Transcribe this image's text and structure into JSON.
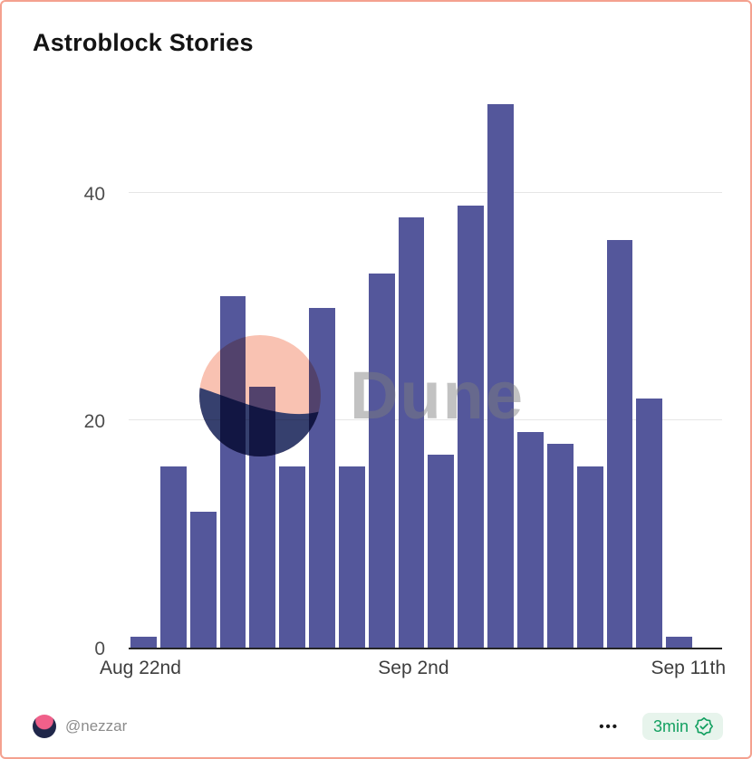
{
  "card": {
    "title": "Astroblock Stories"
  },
  "chart_data": {
    "type": "bar",
    "title": "Astroblock Stories",
    "values": [
      1,
      16,
      12,
      31,
      23,
      16,
      30,
      16,
      33,
      38,
      17,
      39,
      48,
      19,
      18,
      16,
      36,
      22,
      1
    ],
    "x_ticks": [
      "Aug 22nd",
      "Sep 2nd",
      "Sep 11th"
    ],
    "y_ticks": [
      0,
      20,
      40
    ],
    "ylim": [
      0,
      49
    ],
    "bar_color": "#54579b",
    "grid": "horizontal",
    "legend": "none",
    "xlabel": "",
    "ylabel": ""
  },
  "watermark": {
    "text": "Dune",
    "logo": "dune-logo",
    "logo_colors": {
      "top": "#f9bfae",
      "bottom": "#2b3566"
    }
  },
  "footer": {
    "author": "@nezzar",
    "more_label": "•••",
    "badge": {
      "label": "3min",
      "icon": "verified-seal-icon",
      "color": "#13a061"
    }
  }
}
